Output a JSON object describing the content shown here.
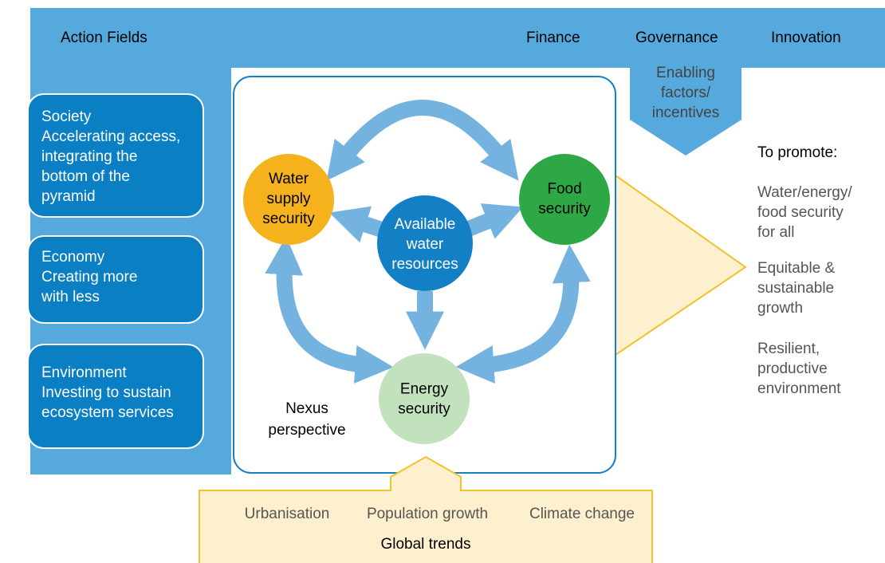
{
  "header": {
    "title": "Action Fields",
    "enablers": [
      "Finance",
      "Governance",
      "Innovation"
    ]
  },
  "enabling": {
    "lines": [
      "Enabling",
      "factors/",
      "incentives"
    ]
  },
  "action_fields": [
    {
      "name": "Society",
      "lines": [
        "Accelerating access,",
        "integrating the",
        "bottom of the",
        "pyramid"
      ]
    },
    {
      "name": "Economy",
      "lines": [
        "Creating more",
        "with less"
      ]
    },
    {
      "name": "Environment",
      "lines": [
        "Investing to sustain",
        "ecosystem services"
      ]
    }
  ],
  "nexus": {
    "nodes": [
      {
        "lines": [
          "Water",
          "supply",
          "security"
        ]
      },
      {
        "lines": [
          "Food",
          "security"
        ]
      },
      {
        "lines": [
          "Available",
          "water",
          "resources"
        ]
      },
      {
        "lines": [
          "Energy",
          "security"
        ]
      }
    ],
    "label_lines": [
      "Nexus",
      "perspective"
    ]
  },
  "promote": {
    "title": "To promote:",
    "goals": [
      [
        "Water/energy/",
        "food security",
        "for all"
      ],
      [
        "Equitable &",
        "sustainable",
        "growth"
      ],
      [
        "Resilient,",
        "productive",
        "environment"
      ]
    ]
  },
  "global_trends": {
    "title": "Global trends",
    "items": [
      "Urbanisation",
      "Population growth",
      "Climate change"
    ]
  }
}
